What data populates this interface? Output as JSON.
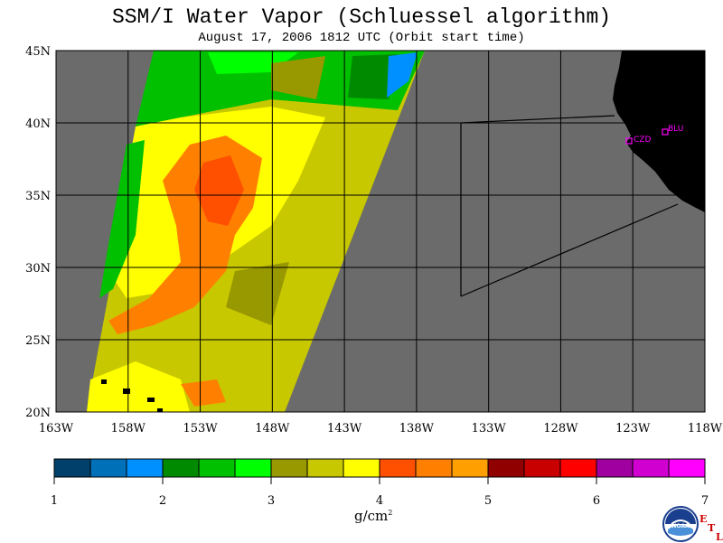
{
  "title": "SSM/I Water Vapor (Schluessel algorithm)",
  "subtitle": "August 17, 2006  1812 UTC  (Orbit start time)",
  "map": {
    "lon_labels": [
      "163W",
      "158W",
      "153W",
      "148W",
      "143W",
      "138W",
      "133W",
      "128W",
      "123W",
      "118W"
    ],
    "lat_labels": [
      "45N",
      "40N",
      "35N",
      "30N",
      "25N",
      "20N"
    ],
    "lon_range": [
      -163,
      -118
    ],
    "lat_range": [
      20,
      45
    ],
    "ocean_nodata_color": "#6b6b6b",
    "land_color": "#000000",
    "stations": [
      {
        "id": "CZD",
        "label": "CZD"
      },
      {
        "id": "BLU",
        "label": "BLU"
      }
    ]
  },
  "colorbar": {
    "tick_labels": [
      "1",
      "2",
      "3",
      "4",
      "5",
      "6",
      "7"
    ],
    "units": "g/cm",
    "units_exp": "2",
    "colors": [
      "#00406b",
      "#0070b8",
      "#0090ff",
      "#008a00",
      "#00c000",
      "#00ff00",
      "#989800",
      "#c8c800",
      "#ffff00",
      "#ff5000",
      "#ff8000",
      "#ffa000",
      "#900000",
      "#c80000",
      "#ff0000",
      "#a000a0",
      "#d000d0",
      "#ff00ff"
    ]
  },
  "logo": {
    "name": "NOAA",
    "text": "NOAA"
  },
  "corner_mark": {
    "e": "E",
    "t": "T",
    "l": "L"
  }
}
